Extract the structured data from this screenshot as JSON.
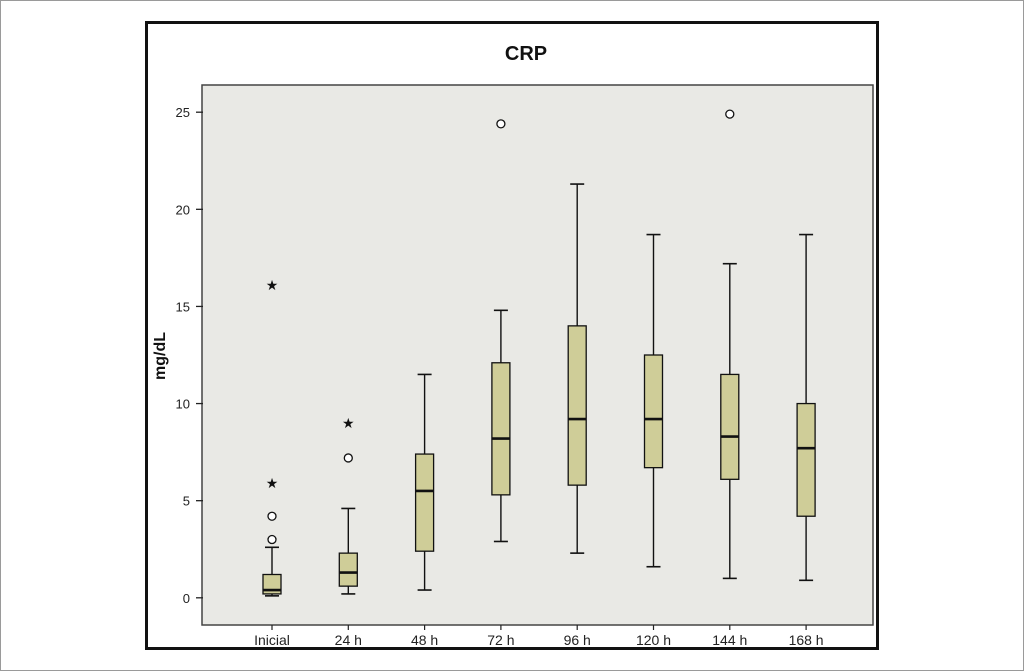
{
  "chart_data": {
    "type": "box",
    "title": "CRP",
    "xlabel": "",
    "ylabel": "mg/dL",
    "ylim": [
      -1.4,
      26.4
    ],
    "yticks": [
      0,
      5,
      10,
      15,
      20,
      25
    ],
    "grid": false,
    "categories": [
      "Inicial",
      "24 h",
      "48 h",
      "72 h",
      "96 h",
      "120 h",
      "144 h",
      "168 h"
    ],
    "boxes": [
      {
        "whisker_low": 0.1,
        "q1": 0.2,
        "median": 0.4,
        "q3": 1.2,
        "whisker_high": 2.6,
        "outliers": [
          3.0,
          4.2
        ],
        "extremes": [
          5.9,
          16.1
        ]
      },
      {
        "whisker_low": 0.2,
        "q1": 0.6,
        "median": 1.3,
        "q3": 2.3,
        "whisker_high": 4.6,
        "outliers": [
          7.2
        ],
        "extremes": [
          9.0
        ]
      },
      {
        "whisker_low": 0.4,
        "q1": 2.4,
        "median": 5.5,
        "q3": 7.4,
        "whisker_high": 11.5,
        "outliers": [],
        "extremes": []
      },
      {
        "whisker_low": 2.9,
        "q1": 5.3,
        "median": 8.2,
        "q3": 12.1,
        "whisker_high": 14.8,
        "outliers": [
          24.4
        ],
        "extremes": []
      },
      {
        "whisker_low": 2.3,
        "q1": 5.8,
        "median": 9.2,
        "q3": 14.0,
        "whisker_high": 21.3,
        "outliers": [],
        "extremes": []
      },
      {
        "whisker_low": 1.6,
        "q1": 6.7,
        "median": 9.2,
        "q3": 12.5,
        "whisker_high": 18.7,
        "outliers": [],
        "extremes": []
      },
      {
        "whisker_low": 1.0,
        "q1": 6.1,
        "median": 8.3,
        "q3": 11.5,
        "whisker_high": 17.2,
        "outliers": [
          24.9
        ],
        "extremes": []
      },
      {
        "whisker_low": 0.9,
        "q1": 4.2,
        "median": 7.7,
        "q3": 10.0,
        "whisker_high": 18.7,
        "outliers": [],
        "extremes": []
      }
    ]
  },
  "colors": {
    "plot_background": "#e9e9e5",
    "box_fill": "#cfcd98",
    "stroke": "#111111"
  }
}
